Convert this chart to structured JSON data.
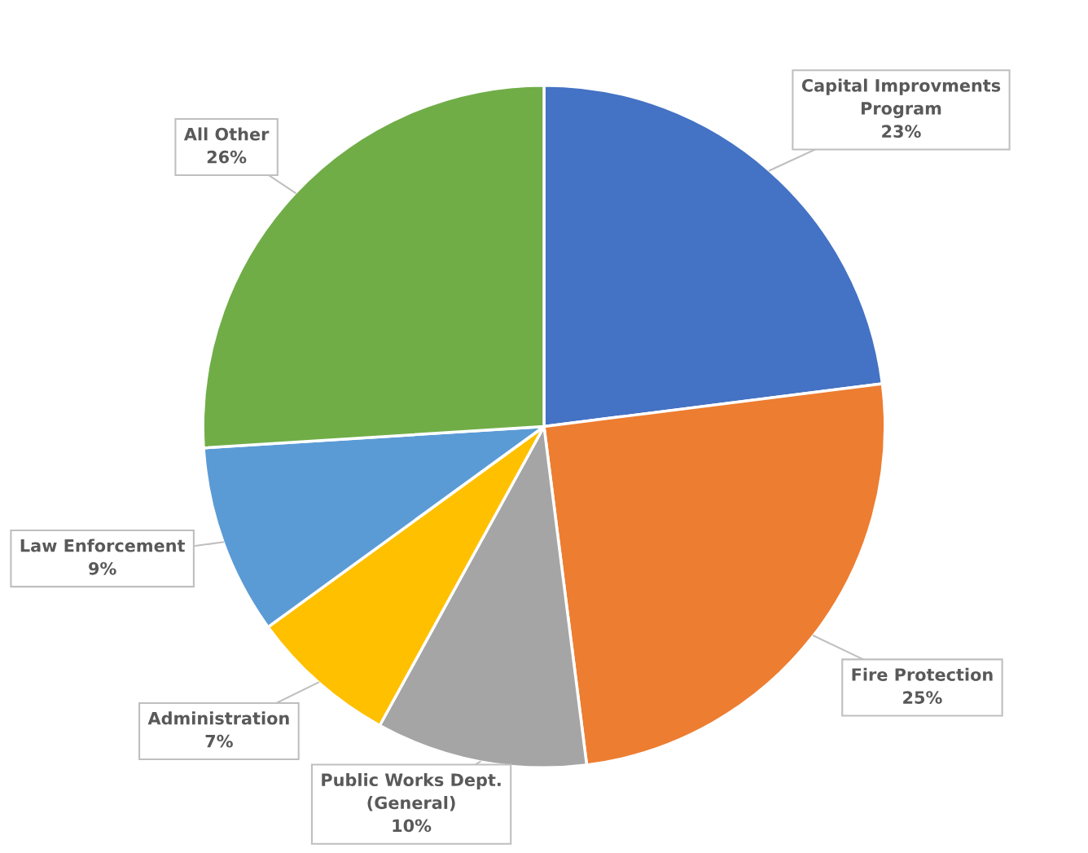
{
  "chart_data": {
    "type": "pie",
    "categories": [
      "Capital Improvments Program",
      "Fire Protection",
      "Public Works Dept. (General)",
      "Administration",
      "Law Enforcement",
      "All Other"
    ],
    "values": [
      23,
      25,
      10,
      7,
      9,
      26
    ],
    "value_labels": [
      "23%",
      "25%",
      "10%",
      "7%",
      "9%",
      "26%"
    ],
    "colors": [
      "#4472c4",
      "#ed7d31",
      "#a5a5a5",
      "#ffc000",
      "#5b9bd5",
      "#70ad47"
    ],
    "legend": false
  }
}
